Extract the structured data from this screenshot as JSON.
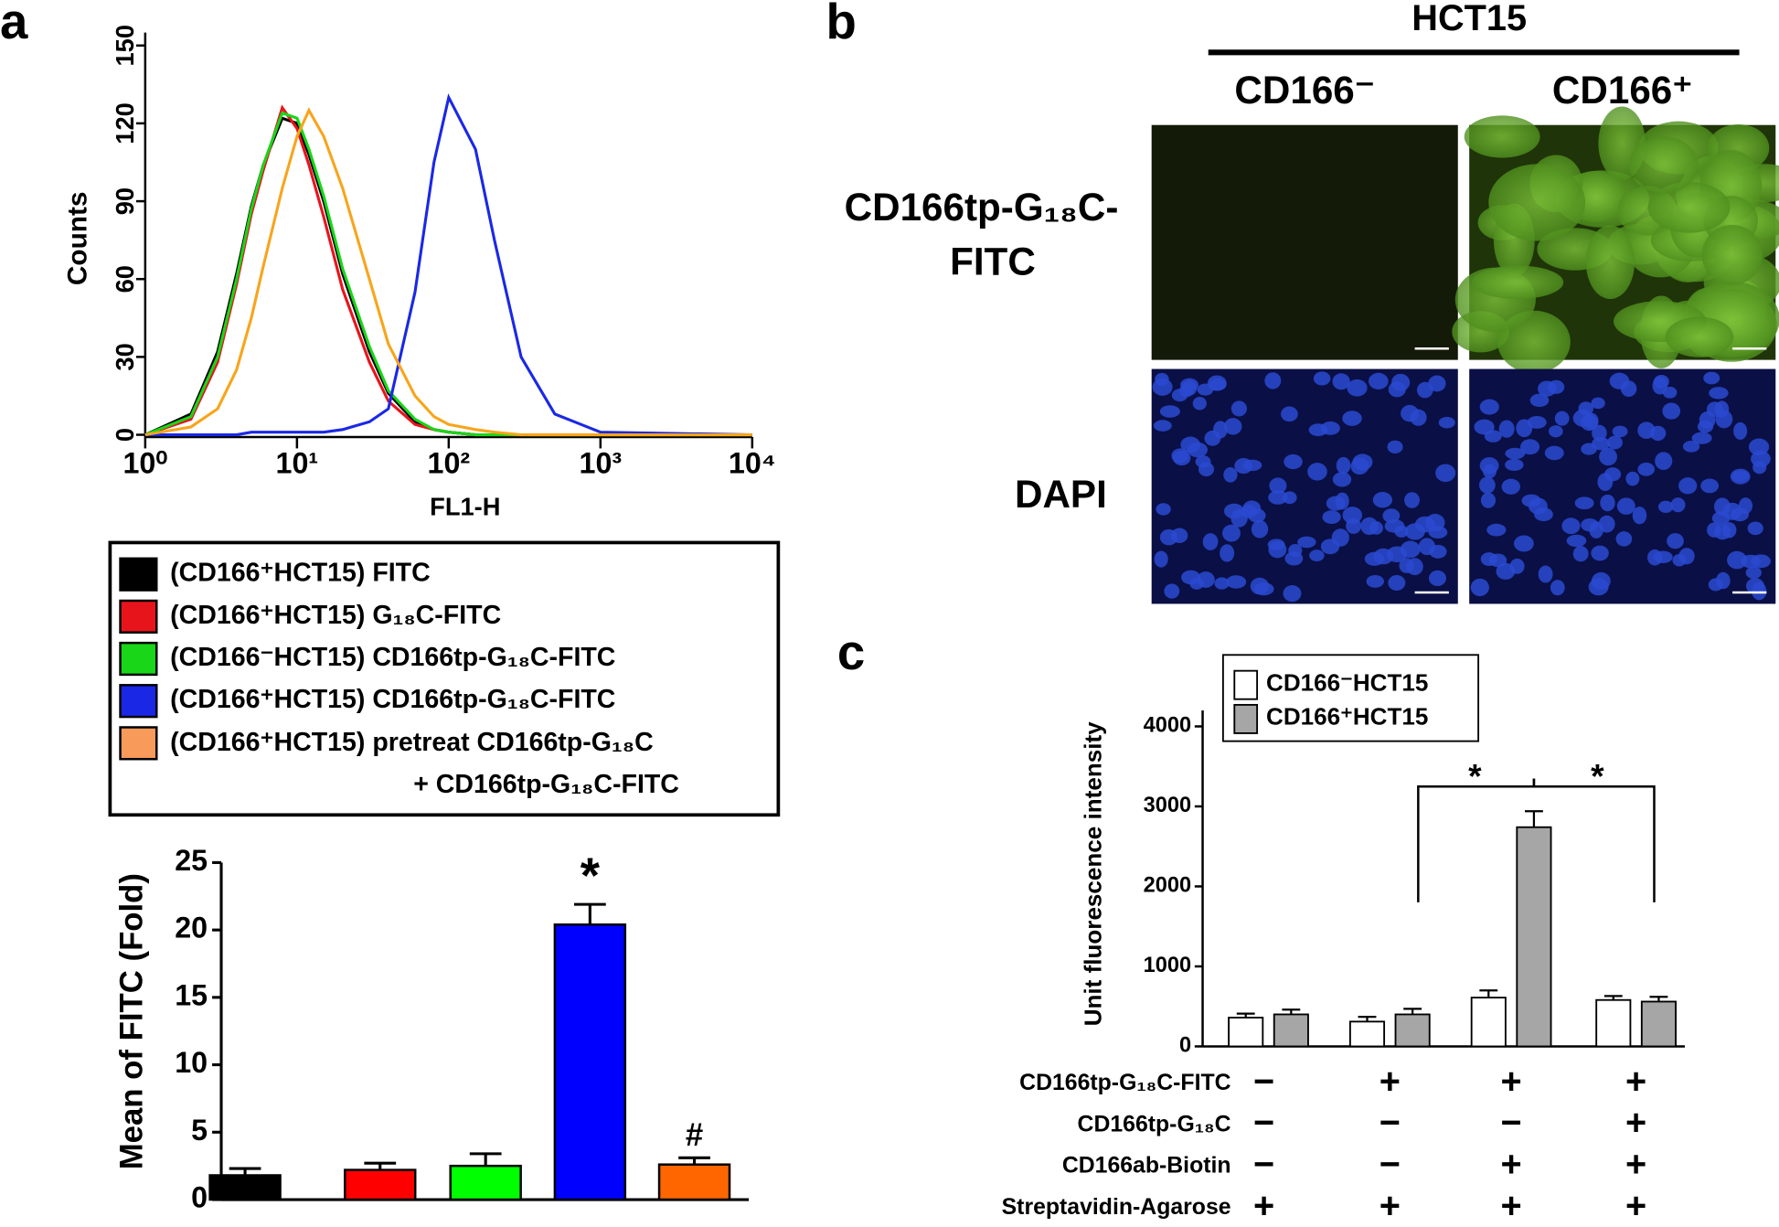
{
  "chart_data": [
    {
      "type": "line",
      "panel_label": "a",
      "xlabel": "FL1-H",
      "ylabel": "Counts",
      "xscale": "log",
      "xlim": [
        1,
        10000
      ],
      "xticks": [
        {
          "value": 1,
          "label": "10⁰"
        },
        {
          "value": 10,
          "label": "10¹"
        },
        {
          "value": 100,
          "label": "10²"
        },
        {
          "value": 1000,
          "label": "10³"
        },
        {
          "value": 10000,
          "label": "10⁴"
        }
      ],
      "ylim": [
        0,
        155
      ],
      "yticks": [
        0,
        30,
        60,
        90,
        120,
        150
      ],
      "x": [
        1,
        2,
        3,
        4,
        5,
        6,
        8,
        10,
        12,
        15,
        20,
        30,
        40,
        60,
        80,
        100,
        150,
        200,
        300,
        500,
        1000,
        10000
      ],
      "series": [
        {
          "name": "(CD166⁺HCT15) FITC",
          "color": "#000000",
          "values": [
            0,
            8,
            32,
            62,
            88,
            104,
            122,
            120,
            108,
            90,
            62,
            32,
            16,
            5,
            2,
            1,
            0,
            0,
            0,
            0,
            0,
            0
          ]
        },
        {
          "name": "(CD166⁺HCT15) G₁₈C-FITC",
          "color": "#e8141c",
          "values": [
            0,
            6,
            28,
            58,
            85,
            102,
            126,
            118,
            104,
            84,
            56,
            28,
            13,
            4,
            2,
            1,
            0,
            0,
            0,
            0,
            0,
            0
          ]
        },
        {
          "name": "(CD166⁻HCT15) CD166tp-G₁₈C-FITC",
          "color": "#19d619",
          "values": [
            0,
            7,
            30,
            60,
            87,
            104,
            124,
            122,
            110,
            92,
            64,
            34,
            17,
            6,
            2,
            1,
            0,
            0,
            0,
            0,
            0,
            0
          ]
        },
        {
          "name": "(CD166⁺HCT15) CD166tp-G₁₈C-FITC",
          "color": "#1a28e6",
          "values": [
            0,
            0,
            0,
            0,
            1,
            1,
            1,
            1,
            1,
            1,
            2,
            5,
            10,
            55,
            105,
            130,
            110,
            75,
            30,
            8,
            1,
            0
          ]
        },
        {
          "name": "(CD166⁺HCT15) pretreat CD166tp-G₁₈C + CD166tp-G₁₈C-FITC",
          "color": "#f7a51c",
          "values": [
            0,
            3,
            10,
            25,
            45,
            65,
            95,
            115,
            125,
            115,
            95,
            60,
            35,
            15,
            7,
            4,
            2,
            1,
            0,
            0,
            0,
            0
          ]
        }
      ],
      "legend_colors": [
        "#000000",
        "#e8141c",
        "#19d619",
        "#1a28e6",
        "#f79a5a"
      ]
    },
    {
      "type": "bar",
      "ylabel": "Mean of FITC (Fold)",
      "ylim": [
        0,
        25
      ],
      "yticks": [
        0,
        5,
        10,
        15,
        20,
        25
      ],
      "categories": [
        null,
        null,
        null,
        null,
        null
      ],
      "values": [
        1.8,
        2.2,
        2.5,
        20.4,
        2.6
      ],
      "errors": [
        0.5,
        0.5,
        0.9,
        1.5,
        0.5
      ],
      "colors": [
        "#000000",
        "#ff0000",
        "#00ff00",
        "#0000ff",
        "#ff6600"
      ],
      "value_annotations": [
        null,
        null,
        null,
        "*",
        "#"
      ]
    },
    {
      "type": "grouped_bar",
      "panel_label": "c",
      "ylabel": "Unit fluorescence intensity",
      "ylim": [
        0,
        4200
      ],
      "yticks": [
        0,
        1000,
        2000,
        3000,
        4000
      ],
      "categories": [
        null,
        null,
        null,
        null
      ],
      "series": [
        {
          "name": "CD166⁻HCT15",
          "color": "#ffffff",
          "values": [
            360,
            310,
            610,
            580
          ],
          "errors": [
            50,
            60,
            90,
            50
          ]
        },
        {
          "name": "CD166⁺HCT15",
          "color": "#a6a6a6",
          "values": [
            400,
            400,
            2740,
            560
          ],
          "errors": [
            60,
            70,
            200,
            60
          ]
        }
      ],
      "significance": [
        "*",
        "*"
      ],
      "conditions": {
        "labels": [
          "CD166tp-G₁₈C-FITC",
          "CD166tp-G₁₈C",
          "CD166ab-Biotin",
          "Streptavidin-Agarose"
        ],
        "cells": [
          [
            "−",
            "+",
            "+",
            "+"
          ],
          [
            "−",
            "−",
            "−",
            "+"
          ],
          [
            "−",
            "−",
            "+",
            "+"
          ],
          [
            "+",
            "+",
            "+",
            "+"
          ]
        ]
      }
    }
  ],
  "images": {
    "panel_label": "b",
    "group": "HCT15",
    "columns": [
      "CD166⁻",
      "CD166⁺"
    ],
    "rows": [
      "CD166tp-G₁₈C-FITC",
      "DAPI"
    ]
  }
}
